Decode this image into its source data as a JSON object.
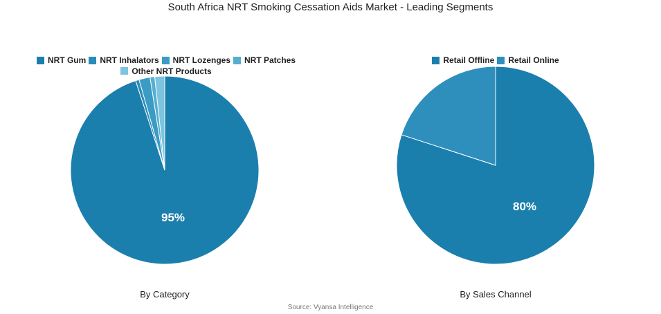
{
  "title": "South Africa NRT Smoking Cessation Aids Market - Leading Segments",
  "source": "Source: Vyansa Intelligence",
  "chart_data": [
    {
      "type": "pie",
      "subtitle": "By Category",
      "categories": [
        "NRT Gum",
        "NRT Inhalators",
        "NRT Lozenges",
        "NRT Patches",
        "Other NRT Products"
      ],
      "values": [
        95,
        0.6,
        1.9,
        0.8,
        1.7
      ],
      "colors": [
        "#1b7fad",
        "#2a8cb8",
        "#3a9bc5",
        "#55aed0",
        "#7cc4df"
      ],
      "data_labels": [
        "95%",
        "",
        "",
        "",
        ""
      ],
      "legend_position": "top"
    },
    {
      "type": "pie",
      "subtitle": "By Sales Channel",
      "categories": [
        "Retail Offline",
        "Retail Online"
      ],
      "values": [
        80,
        20
      ],
      "colors": [
        "#1b7fad",
        "#2e8fbc"
      ],
      "data_labels": [
        "80%",
        ""
      ],
      "legend_position": "top"
    }
  ]
}
